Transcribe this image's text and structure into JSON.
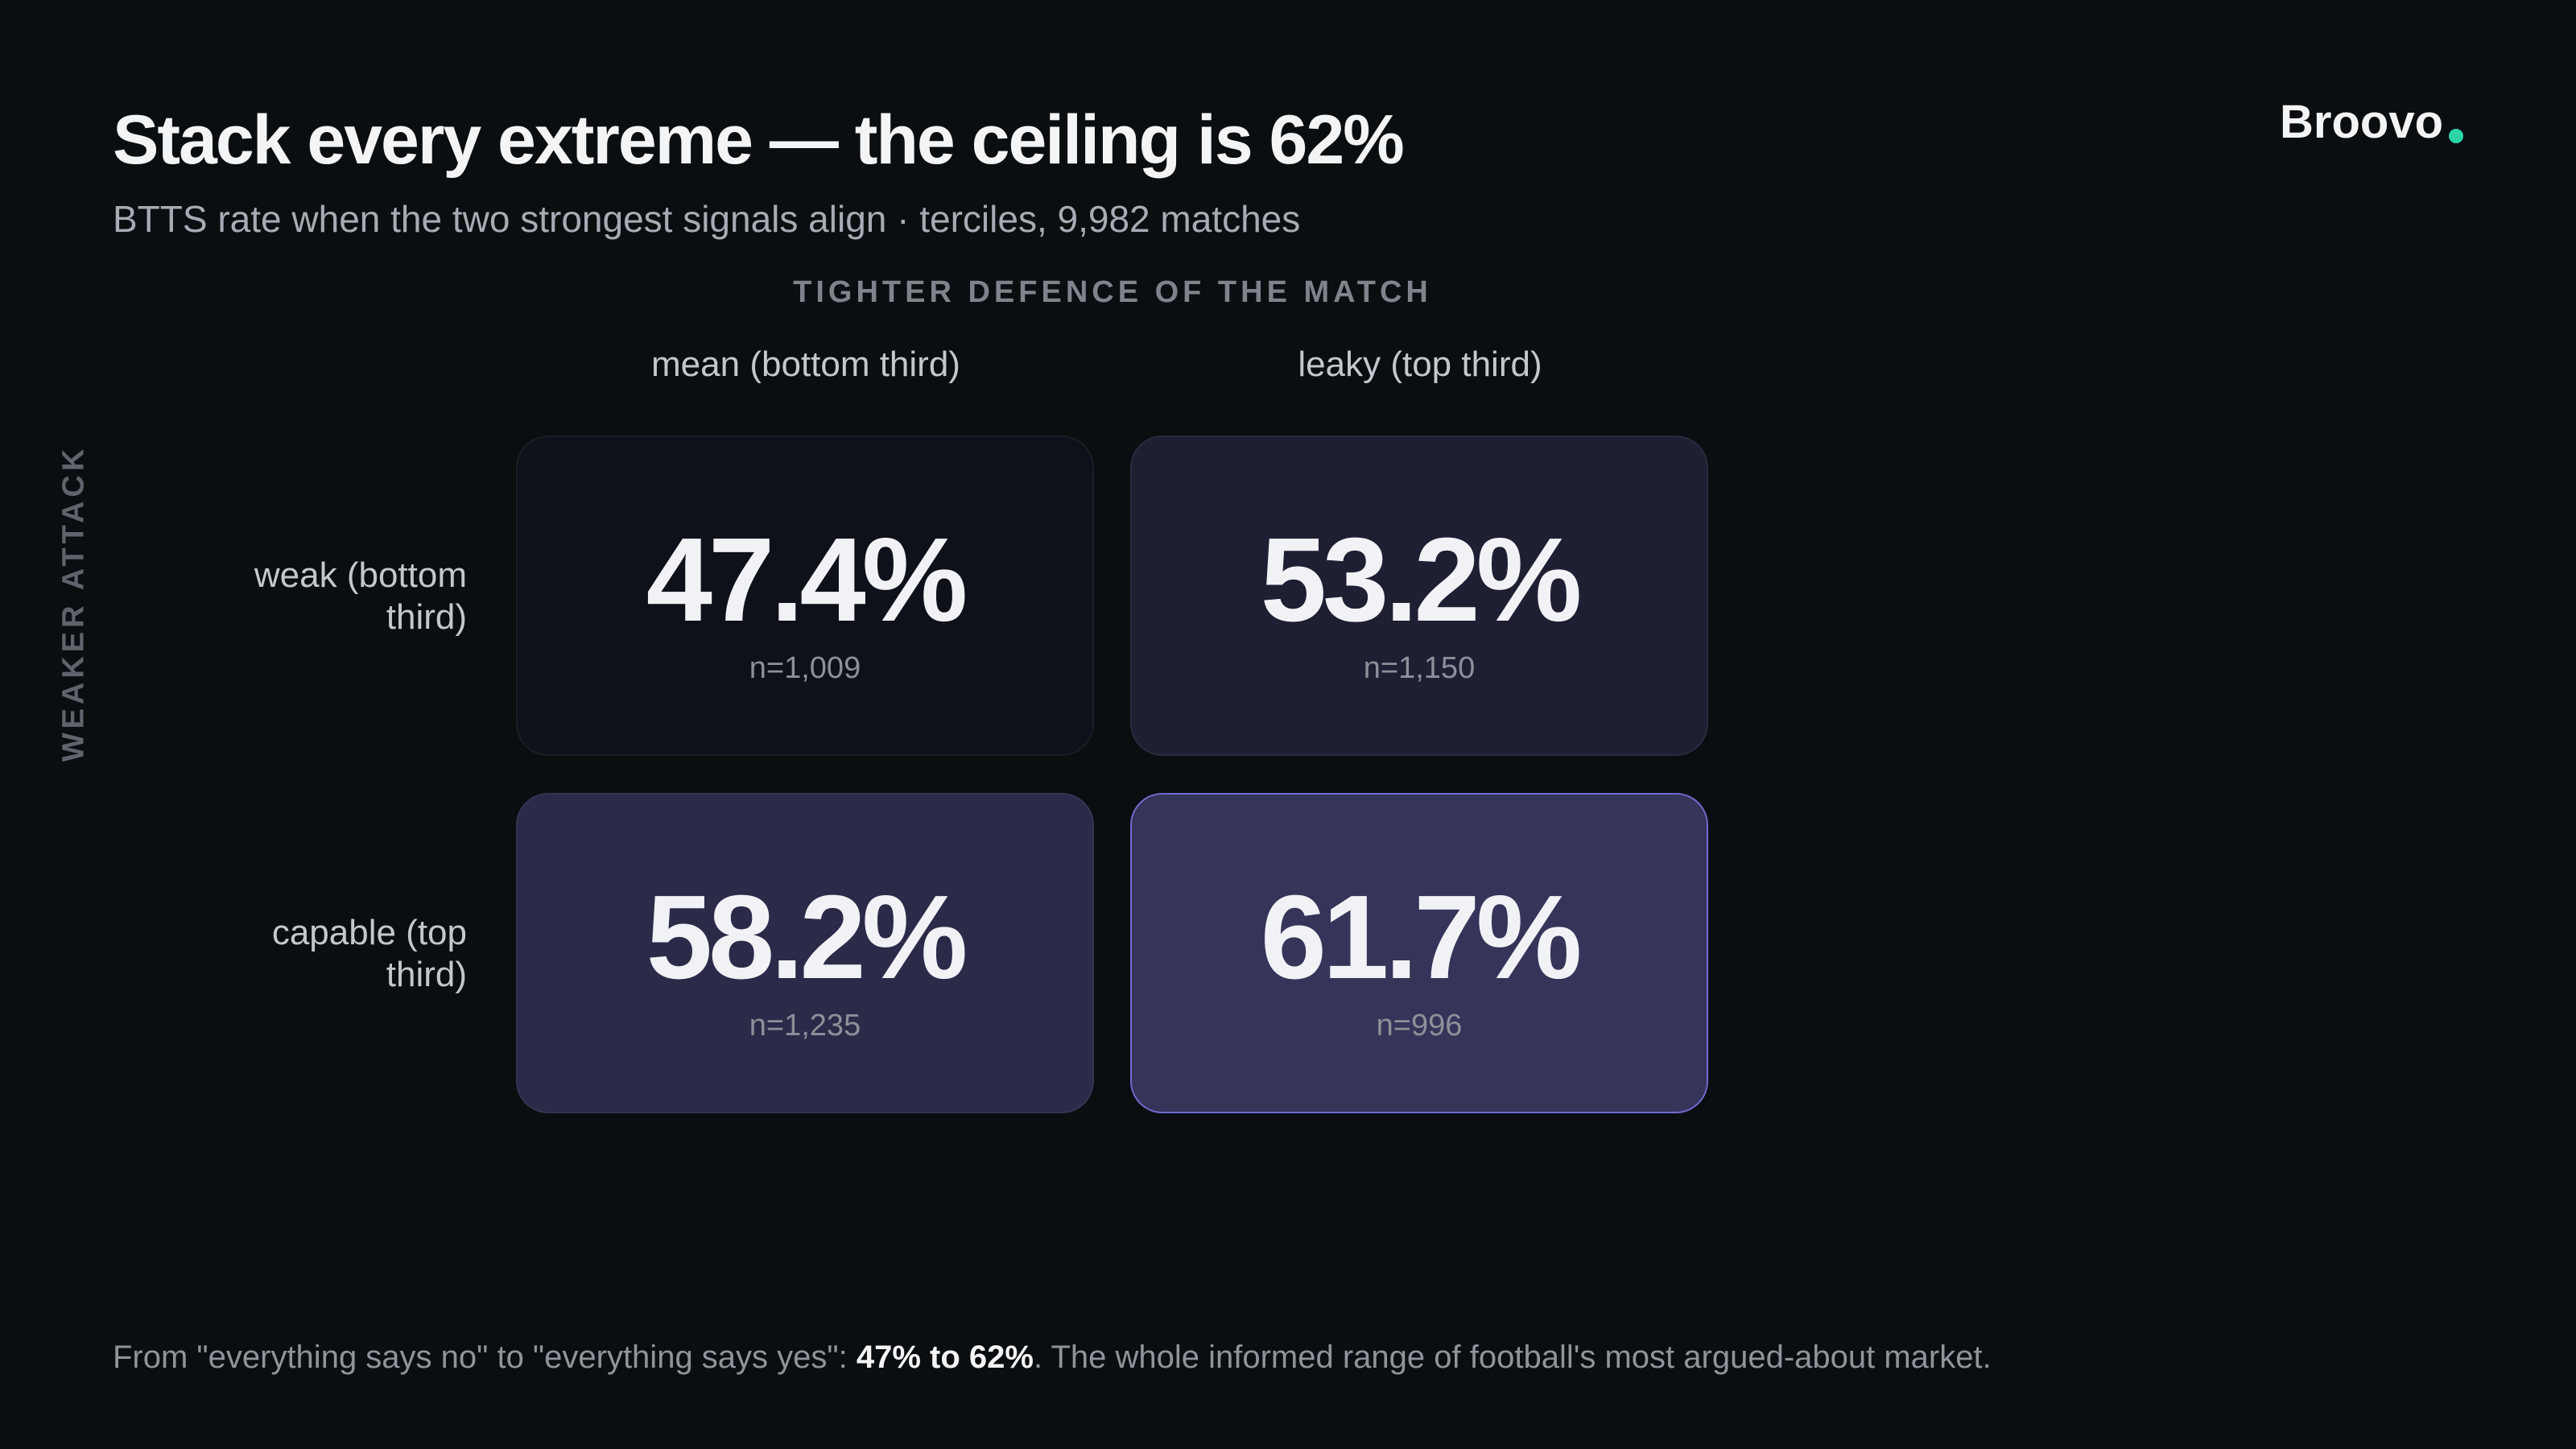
{
  "brand": "Broovo",
  "chart_data": {
    "type": "heatmap",
    "title": "Stack every extreme — the ceiling is 62%",
    "subtitle": "BTTS rate when the two strongest signals align · terciles, 9,982 matches",
    "x_label": "TIGHTER DEFENCE OF THE MATCH",
    "y_label": "WEAKER ATTACK",
    "x_categories": [
      "mean (bottom third)",
      "leaky (top third)"
    ],
    "y_categories": [
      "weak (bottom third)",
      "capable (top third)"
    ],
    "values": [
      [
        47.4,
        53.2
      ],
      [
        58.2,
        61.7
      ]
    ],
    "value_labels": [
      [
        "47.4%",
        "53.2%"
      ],
      [
        "58.2%",
        "61.7%"
      ]
    ],
    "cell_notes": [
      [
        "n=1,009",
        "n=1,150"
      ],
      [
        "n=1,235",
        "n=996"
      ]
    ],
    "colors": [
      "#0e1119",
      "#353459"
    ],
    "highlight_color": "#6f6bd0"
  },
  "footnote": {
    "before": "From \"everything says no\" to \"everything says yes\": ",
    "bold": "47% to 62%",
    "after": ". The whole informed range of football's most argued-about market."
  }
}
